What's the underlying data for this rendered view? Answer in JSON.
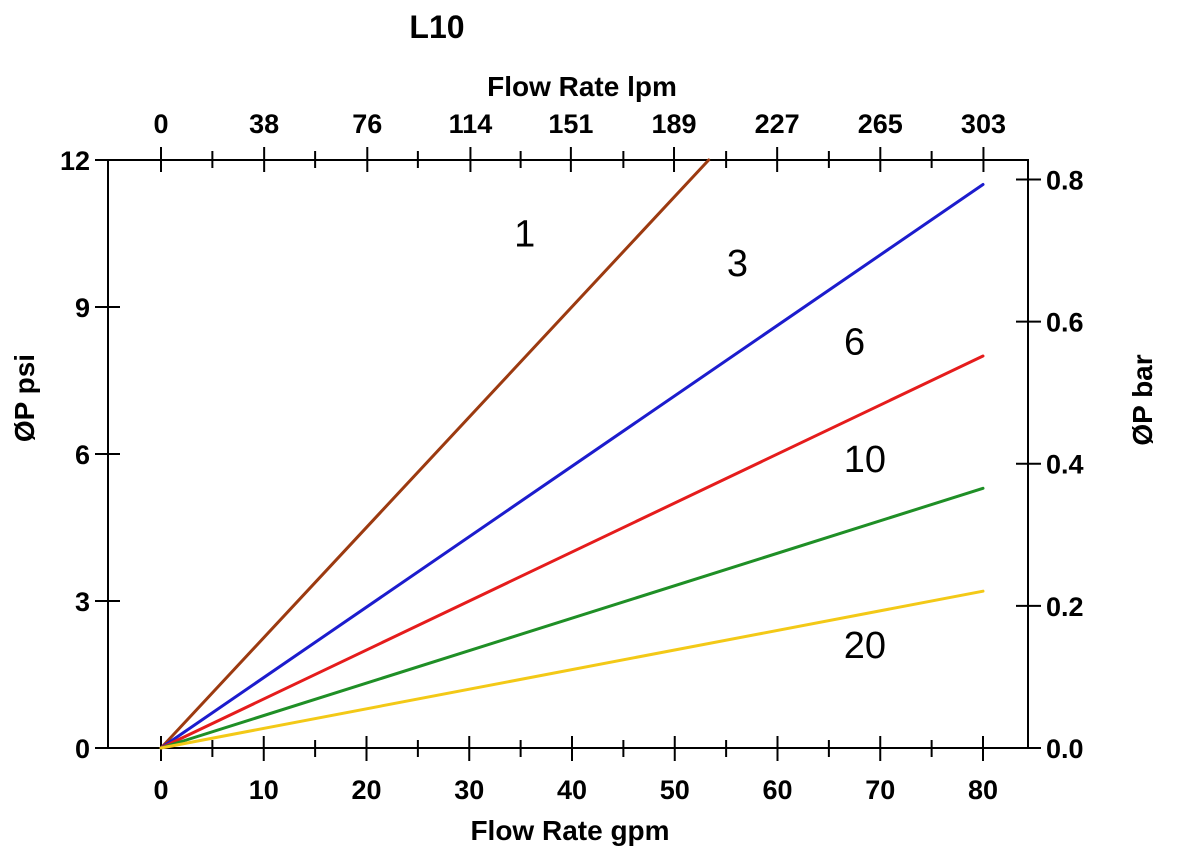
{
  "chart_data": {
    "type": "line",
    "title": "L10",
    "axes": {
      "top": {
        "label": "Flow Rate lpm",
        "ticks": [
          0,
          38,
          76,
          114,
          151,
          189,
          227,
          265,
          303
        ]
      },
      "bottom": {
        "label": "Flow Rate gpm",
        "ticks": [
          0,
          10,
          20,
          30,
          40,
          50,
          60,
          70,
          80
        ],
        "minor_ticks_gpm": [
          5,
          15,
          25,
          35,
          45,
          55,
          65,
          75
        ]
      },
      "left": {
        "label": "ØP psi",
        "ticks": [
          0,
          3,
          6,
          9,
          12
        ],
        "range": [
          0,
          12
        ]
      },
      "right": {
        "label": "ØP bar",
        "ticks": [
          "0.0",
          "0.2",
          "0.4",
          "0.6",
          "0.8"
        ],
        "range": [
          0.0,
          0.8
        ]
      }
    },
    "x_unit_bottom": "gpm",
    "x_unit_top": "lpm",
    "y_unit_left": "psi",
    "y_unit_right": "bar",
    "series": [
      {
        "name": "1",
        "color": "#9c3a10",
        "points_gpm_psi": [
          [
            0,
            0
          ],
          [
            53.3,
            12.0
          ]
        ],
        "clipped_at_top": true,
        "label_at_gpm_psi": [
          35.4,
          10.5
        ]
      },
      {
        "name": "3",
        "color": "#1c1ccd",
        "points_gpm_psi": [
          [
            0,
            0
          ],
          [
            80,
            11.5
          ]
        ],
        "clipped_at_top": false,
        "label_at_gpm_psi": [
          56.1,
          9.9
        ]
      },
      {
        "name": "6",
        "color": "#e51c1c",
        "points_gpm_psi": [
          [
            0,
            0
          ],
          [
            80,
            8.0
          ]
        ],
        "clipped_at_top": false,
        "label_at_gpm_psi": [
          67.5,
          8.3
        ]
      },
      {
        "name": "10",
        "color": "#1f8f26",
        "points_gpm_psi": [
          [
            0,
            0
          ],
          [
            80,
            5.3
          ]
        ],
        "clipped_at_top": false,
        "label_at_gpm_psi": [
          68.5,
          5.9
        ]
      },
      {
        "name": "20",
        "color": "#f3c917",
        "points_gpm_psi": [
          [
            0,
            0
          ],
          [
            80,
            3.2
          ]
        ],
        "clipped_at_top": false,
        "label_at_gpm_psi": [
          68.5,
          2.1
        ]
      }
    ],
    "style": {
      "axis_color": "#000000",
      "background": "#ffffff",
      "grid": "off",
      "legend": "none (inline line labels)"
    }
  }
}
